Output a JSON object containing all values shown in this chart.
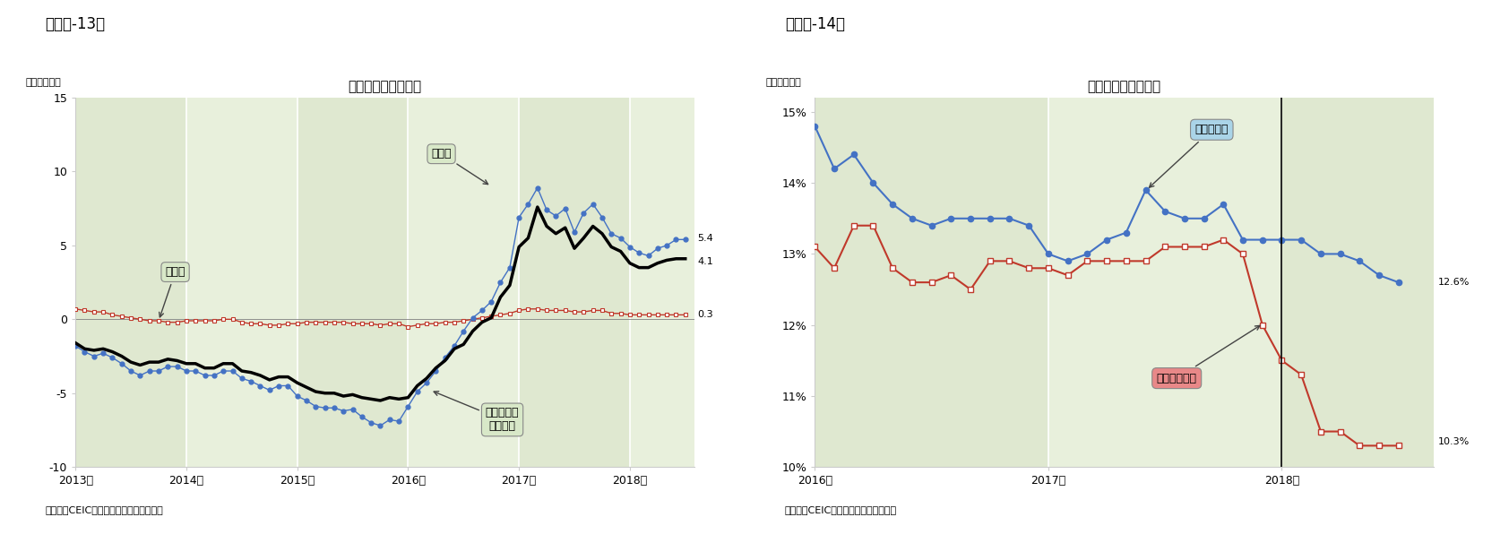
{
  "fig13_title": "工業生産者出荷価格",
  "fig13_ylabel": "（前年比％）",
  "fig13_source": "（資料）CEIC（出所は中国国家統計局）",
  "fig13_panel_label": "（図表-13）",
  "fig13_bg_color": "#dfe8d0",
  "fig13_stripe_color": "#e8f0dc",
  "fig13_ylim": [
    -10,
    15
  ],
  "fig13_yticks": [
    -10,
    -5,
    0,
    5,
    10,
    15
  ],
  "fig13_seisan_label": "生産財",
  "fig13_shohi_label": "消費財",
  "fig13_kogyo_label": "工業生産者\n出荷価格",
  "fig13_x": [
    2013.0,
    2013.083,
    2013.167,
    2013.25,
    2013.333,
    2013.417,
    2013.5,
    2013.583,
    2013.667,
    2013.75,
    2013.833,
    2013.917,
    2014.0,
    2014.083,
    2014.167,
    2014.25,
    2014.333,
    2014.417,
    2014.5,
    2014.583,
    2014.667,
    2014.75,
    2014.833,
    2014.917,
    2015.0,
    2015.083,
    2015.167,
    2015.25,
    2015.333,
    2015.417,
    2015.5,
    2015.583,
    2015.667,
    2015.75,
    2015.833,
    2015.917,
    2016.0,
    2016.083,
    2016.167,
    2016.25,
    2016.333,
    2016.417,
    2016.5,
    2016.583,
    2016.667,
    2016.75,
    2016.833,
    2016.917,
    2017.0,
    2017.083,
    2017.167,
    2017.25,
    2017.333,
    2017.417,
    2017.5,
    2017.583,
    2017.667,
    2017.75,
    2017.833,
    2017.917,
    2018.0,
    2018.083,
    2018.167,
    2018.25,
    2018.333,
    2018.417,
    2018.5
  ],
  "fig13_seisan": [
    -1.8,
    -2.2,
    -2.5,
    -2.3,
    -2.6,
    -3.0,
    -3.5,
    -3.8,
    -3.5,
    -3.5,
    -3.2,
    -3.2,
    -3.5,
    -3.5,
    -3.8,
    -3.8,
    -3.5,
    -3.5,
    -4.0,
    -4.2,
    -4.5,
    -4.8,
    -4.5,
    -4.5,
    -5.2,
    -5.5,
    -5.9,
    -6.0,
    -6.0,
    -6.2,
    -6.1,
    -6.6,
    -7.0,
    -7.2,
    -6.8,
    -6.9,
    -5.9,
    -4.9,
    -4.3,
    -3.5,
    -2.6,
    -1.8,
    -0.8,
    0.1,
    0.6,
    1.2,
    2.5,
    3.5,
    6.9,
    7.8,
    8.9,
    7.4,
    7.0,
    7.5,
    5.9,
    7.2,
    7.8,
    6.9,
    5.8,
    5.5,
    4.9,
    4.5,
    4.3,
    4.8,
    5.0,
    5.4,
    5.4
  ],
  "fig13_shohi": [
    0.7,
    0.6,
    0.5,
    0.5,
    0.3,
    0.2,
    0.1,
    0.0,
    -0.1,
    -0.1,
    -0.2,
    -0.2,
    -0.1,
    -0.1,
    -0.1,
    -0.1,
    0.0,
    0.0,
    -0.2,
    -0.3,
    -0.3,
    -0.4,
    -0.4,
    -0.3,
    -0.3,
    -0.2,
    -0.2,
    -0.2,
    -0.2,
    -0.2,
    -0.3,
    -0.3,
    -0.3,
    -0.4,
    -0.3,
    -0.3,
    -0.5,
    -0.4,
    -0.3,
    -0.3,
    -0.2,
    -0.2,
    -0.1,
    0.0,
    0.1,
    0.2,
    0.3,
    0.4,
    0.6,
    0.7,
    0.7,
    0.6,
    0.6,
    0.6,
    0.5,
    0.5,
    0.6,
    0.6,
    0.4,
    0.4,
    0.3,
    0.3,
    0.3,
    0.3,
    0.3,
    0.3,
    0.3
  ],
  "fig13_kogyo": [
    -1.6,
    -2.0,
    -2.1,
    -2.0,
    -2.2,
    -2.5,
    -2.9,
    -3.1,
    -2.9,
    -2.9,
    -2.7,
    -2.8,
    -3.0,
    -3.0,
    -3.3,
    -3.3,
    -3.0,
    -3.0,
    -3.5,
    -3.6,
    -3.8,
    -4.1,
    -3.9,
    -3.9,
    -4.3,
    -4.6,
    -4.9,
    -5.0,
    -5.0,
    -5.2,
    -5.1,
    -5.3,
    -5.4,
    -5.5,
    -5.3,
    -5.4,
    -5.3,
    -4.5,
    -4.0,
    -3.3,
    -2.8,
    -2.0,
    -1.7,
    -0.8,
    -0.2,
    0.1,
    1.5,
    2.3,
    4.9,
    5.5,
    7.6,
    6.3,
    5.8,
    6.2,
    4.8,
    5.5,
    6.3,
    5.8,
    4.9,
    4.6,
    3.8,
    3.5,
    3.5,
    3.8,
    4.0,
    4.1,
    4.1
  ],
  "fig14_title": "社会融資総量の推移",
  "fig14_ylabel": "（前年比％）",
  "fig14_source": "（資料）CEIC（出所は中国人民銀行）",
  "fig14_panel_label": "（図表-14）",
  "fig14_bg_color": "#dfe8d0",
  "fig14_stripe_color": "#e8f0dc",
  "fig14_ylim_min": 10.0,
  "fig14_ylim_max": 15.2,
  "fig14_yuante_label": "元建て融資",
  "fig14_shakai_label": "社会融資総量",
  "fig14_x": [
    2016.0,
    2016.083,
    2016.167,
    2016.25,
    2016.333,
    2016.417,
    2016.5,
    2016.583,
    2016.667,
    2016.75,
    2016.833,
    2016.917,
    2017.0,
    2017.083,
    2017.167,
    2017.25,
    2017.333,
    2017.417,
    2017.5,
    2017.583,
    2017.667,
    2017.75,
    2017.833,
    2017.917,
    2018.0,
    2018.083,
    2018.167,
    2018.25,
    2018.333,
    2018.417,
    2018.5
  ],
  "fig14_yuante": [
    14.8,
    14.2,
    14.4,
    14.0,
    13.7,
    13.5,
    13.4,
    13.5,
    13.5,
    13.5,
    13.5,
    13.4,
    13.0,
    12.9,
    13.0,
    13.2,
    13.3,
    13.9,
    13.6,
    13.5,
    13.5,
    13.7,
    13.2,
    13.2,
    13.2,
    13.2,
    13.0,
    13.0,
    12.9,
    12.7,
    12.6
  ],
  "fig14_shakai": [
    13.1,
    12.8,
    13.4,
    13.4,
    12.8,
    12.6,
    12.6,
    12.7,
    12.5,
    12.9,
    12.9,
    12.8,
    12.8,
    12.7,
    12.9,
    12.9,
    12.9,
    12.9,
    13.1,
    13.1,
    13.1,
    13.2,
    13.0,
    12.0,
    11.5,
    11.3,
    10.5,
    10.5,
    10.3,
    10.3,
    10.3
  ],
  "seisan_color": "#4472c4",
  "shohi_color": "#c0392b",
  "kogyo_color": "#000000",
  "yuante_color": "#4472c4",
  "shakai_color": "#c0392b",
  "annotation_box_color_light": "#d8e8c8",
  "annotation_box_color_blue": "#aad4e8",
  "annotation_box_color_red": "#e88888"
}
